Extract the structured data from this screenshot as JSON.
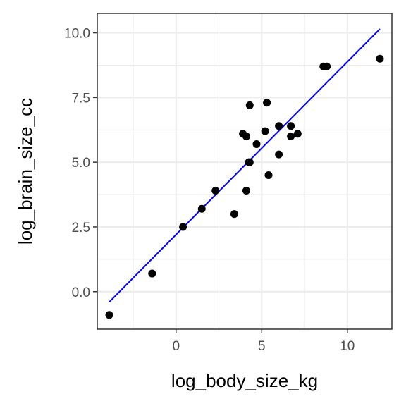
{
  "chart_data": {
    "type": "scatter",
    "xlabel": "log_body_size_kg",
    "ylabel": "log_brain_size_cc",
    "xlim": [
      -4.6,
      12.6
    ],
    "ylim": [
      -1.45,
      10.75
    ],
    "x_ticks": [
      0,
      5,
      10
    ],
    "x_tick_labels": [
      "0",
      "5",
      "10"
    ],
    "y_ticks": [
      0.0,
      2.5,
      5.0,
      7.5,
      10.0
    ],
    "y_tick_labels": [
      "0.0",
      "2.5",
      "5.0",
      "7.5",
      "10.0"
    ],
    "grid": true,
    "points": {
      "x": [
        -3.9,
        -1.4,
        0.4,
        1.5,
        2.3,
        3.4,
        3.9,
        4.1,
        4.1,
        4.25,
        4.3,
        4.3,
        4.7,
        5.2,
        5.3,
        5.4,
        6.0,
        6.0,
        6.7,
        6.7,
        7.1,
        8.6,
        8.8,
        11.9
      ],
      "y": [
        -0.9,
        0.7,
        2.5,
        3.2,
        3.9,
        3.0,
        6.1,
        3.9,
        6.0,
        5.0,
        7.2,
        5.0,
        5.7,
        6.2,
        7.3,
        4.5,
        6.4,
        5.3,
        6.0,
        6.4,
        6.1,
        8.7,
        8.7,
        9.0
      ]
    },
    "fit_line": {
      "x": [
        -3.9,
        11.9
      ],
      "y": [
        -0.4,
        10.15
      ]
    },
    "colors": {
      "points": "#000000",
      "fit_line": "#0000ff",
      "grid": "#ebebeb",
      "panel_border": "#333333"
    }
  }
}
